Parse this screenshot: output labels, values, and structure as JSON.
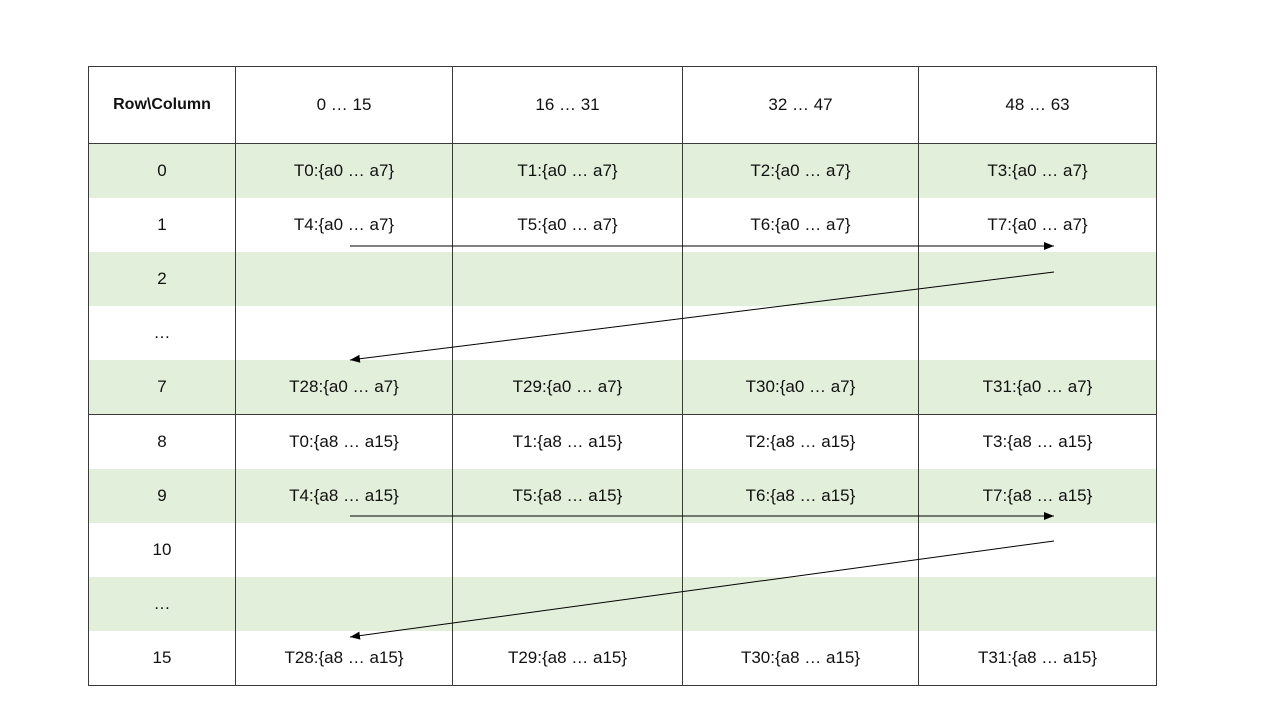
{
  "header": [
    "Row\\Column",
    "0 … 15",
    "16 … 31",
    "32 … 47",
    "48 … 63"
  ],
  "rows": [
    {
      "label": "0",
      "cells": [
        "T0:{a0 … a7}",
        "T1:{a0 … a7}",
        "T2:{a0 … a7}",
        "T3:{a0 … a7}"
      ]
    },
    {
      "label": "1",
      "cells": [
        "T4:{a0 … a7}",
        "T5:{a0 … a7}",
        "T6:{a0 … a7}",
        "T7:{a0 … a7}"
      ]
    },
    {
      "label": "2",
      "cells": [
        "",
        "",
        "",
        ""
      ]
    },
    {
      "label": "…",
      "cells": [
        "",
        "",
        "",
        ""
      ]
    },
    {
      "label": "7",
      "cells": [
        "T28:{a0 … a7}",
        "T29:{a0 … a7}",
        "T30:{a0 … a7}",
        "T31:{a0 … a7}"
      ]
    },
    {
      "label": "8",
      "cells": [
        "T0:{a8 … a15}",
        "T1:{a8 … a15}",
        "T2:{a8 … a15}",
        "T3:{a8 … a15}"
      ]
    },
    {
      "label": "9",
      "cells": [
        "T4:{a8 … a15}",
        "T5:{a8 … a15}",
        "T6:{a8 … a15}",
        "T7:{a8 … a15}"
      ]
    },
    {
      "label": "10",
      "cells": [
        "",
        "",
        "",
        ""
      ]
    },
    {
      "label": "…",
      "cells": [
        "",
        "",
        "",
        ""
      ]
    },
    {
      "label": "15",
      "cells": [
        "T28:{a8 … a15}",
        "T29:{a8 … a15}",
        "T30:{a8 … a15}",
        "T31:{a8 … a15}"
      ]
    }
  ],
  "colors": {
    "stripe": "#e2efda",
    "border": "#3a3a3a",
    "arrow": "#000000"
  }
}
